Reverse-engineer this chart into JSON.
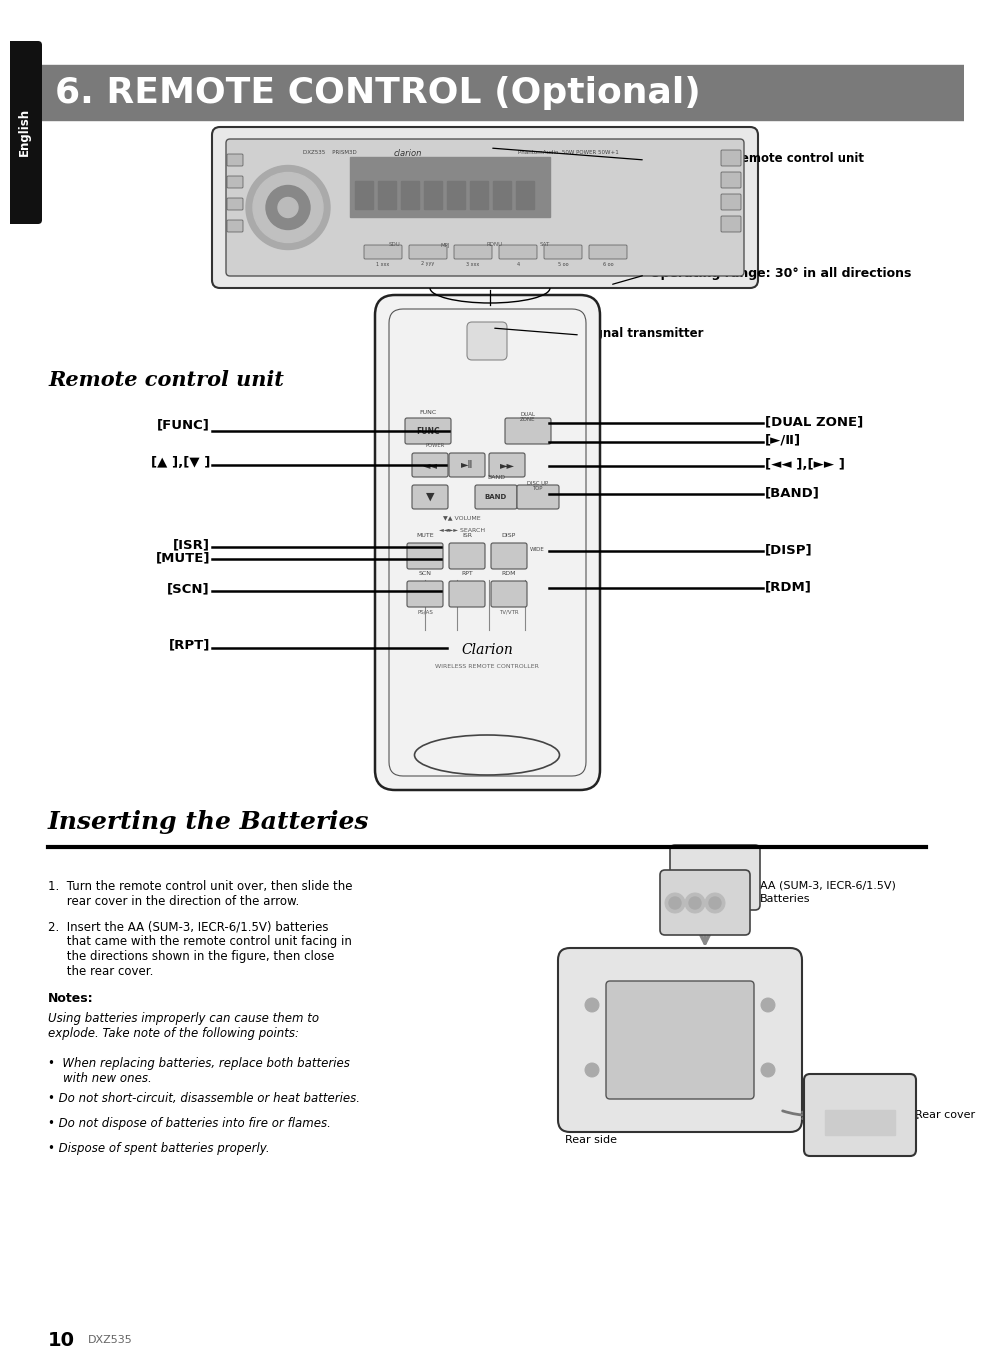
{
  "page_bg": "#ffffff",
  "header_bg": "#7a7a7a",
  "header_text": "6. REMOTE CONTROL (Optional)",
  "header_text_color": "#ffffff",
  "header_fontsize": 26,
  "sidebar_bg": "#111111",
  "sidebar_text": "English",
  "sidebar_text_color": "#ffffff",
  "section1_title": "Remote control unit",
  "section2_title": "Inserting the Batteries",
  "receiver_label": "Receiver for remote control unit",
  "operating_label": "Operating range: 30° in all directions",
  "signal_label": "Signal transmitter",
  "labels_left": [
    "[FUNC]",
    "[▲ ],[▼ ]",
    "[ISR]",
    "[MUTE]",
    "[SCN]",
    "[RPT]"
  ],
  "labels_right": [
    "[DUAL ZONE]",
    "[►/Ⅱ]",
    "[◄◄ ],[►► ]",
    "[BAND]",
    "[DISP]",
    "[RDM]"
  ],
  "step1_a": "1.  Turn the remote control unit over, then slide the",
  "step1_b": "     rear cover in the direction of the arrow.",
  "step2_a": "2.  Insert the AA (SUM-3, IECR-6/1.5V) batteries",
  "step2_b": "     that came with the remote control unit facing in",
  "step2_c": "     the directions shown in the figure, then close",
  "step2_d": "     the rear cover.",
  "notes_title": "Notes:",
  "notes_warning_a": "Using batteries improperly can cause them to",
  "notes_warning_b": "explode. Take note of the following points:",
  "bullet1a": "•  When replacing batteries, replace both batteries",
  "bullet1b": "    with new ones.",
  "bullet2": "• Do not short-circuit, disassemble or heat batteries.",
  "bullet3": "• Do not dispose of batteries into fire or flames.",
  "bullet4": "• Dispose of spent batteries properly.",
  "battery_label_a": "AA (SUM-3, IECR-6/1.5V)",
  "battery_label_b": "Batteries",
  "rear_cover_label": "Rear cover",
  "rear_side_label": "Rear side",
  "page_num": "10",
  "model": "DXZ535"
}
